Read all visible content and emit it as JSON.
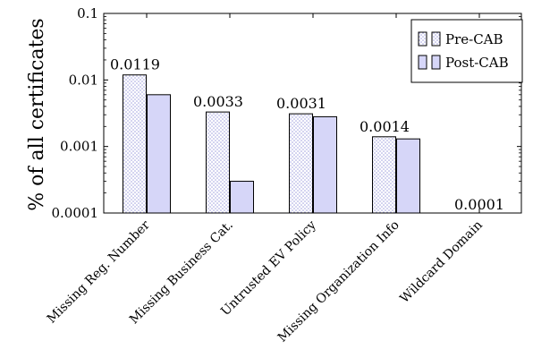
{
  "chart_data": {
    "type": "bar",
    "title": "",
    "xlabel": "",
    "ylabel": "% of all certificates",
    "y_scale": "log",
    "ylim": [
      0.0001,
      0.1
    ],
    "yticks": [
      0.0001,
      0.001,
      0.01,
      0.1
    ],
    "ytick_labels": [
      "0.0001",
      "0.001",
      "0.01",
      "0.1"
    ],
    "categories": [
      "Missing Reg. Number",
      "Missing Business Cat.",
      "Untrusted EV Policy",
      "Missing Organization Info",
      "Wildcard Domain"
    ],
    "series": [
      {
        "name": "Pre-CAB",
        "values": [
          0.0119,
          0.0033,
          0.0031,
          0.0014,
          0.0001
        ],
        "data_labels": [
          "0.0119",
          "0.0033",
          "0.0031",
          "0.0014",
          "0.0001"
        ],
        "pattern": "dotted",
        "color": "#9b9bdc"
      },
      {
        "name": "Post-CAB",
        "values": [
          0.006,
          0.0003,
          0.0028,
          0.0013,
          0.0001
        ],
        "pattern": "solid",
        "color": "#d6d6f8"
      }
    ],
    "legend_position": "top-right",
    "grid": false
  }
}
